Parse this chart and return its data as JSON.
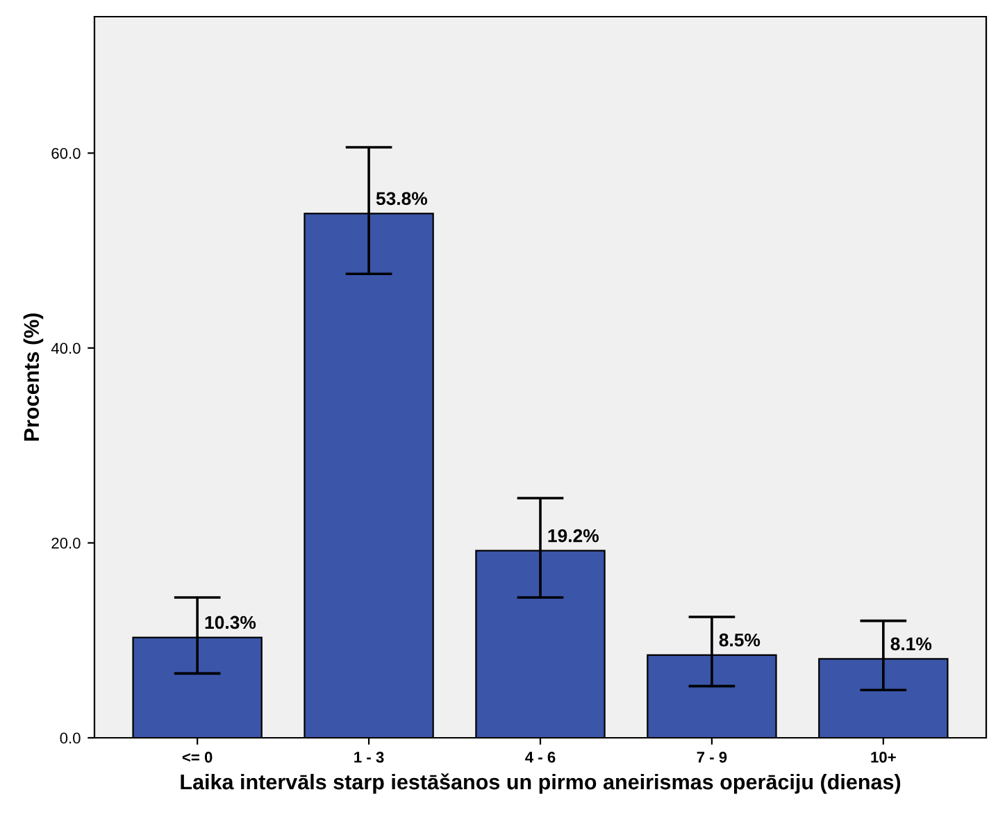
{
  "chart_data": {
    "type": "bar",
    "xlabel": "Laika intervāls starp iestāšanos un pirmo aneirismas operāciju (dienas)",
    "ylabel": "Procents (%)",
    "categories": [
      "<= 0",
      "1 - 3",
      "4 - 6",
      "7 - 9",
      "10+"
    ],
    "values": [
      10.3,
      53.8,
      19.2,
      8.5,
      8.1
    ],
    "value_labels": [
      "10.3%",
      "53.8%",
      "19.2%",
      "8.5%",
      "8.1%"
    ],
    "errors": [
      [
        6.6,
        14.4
      ],
      [
        47.6,
        60.6
      ],
      [
        14.4,
        24.6
      ],
      [
        5.3,
        12.4
      ],
      [
        4.9,
        12.0
      ]
    ],
    "color": "#3b55a9",
    "ylim": [
      0,
      74
    ],
    "yticks": [
      {
        "value": 0,
        "label": "0.0"
      },
      {
        "value": 20,
        "label": "20.0"
      },
      {
        "value": 40,
        "label": "40.0"
      },
      {
        "value": 60,
        "label": "60.0"
      }
    ],
    "grid": false,
    "legend": false
  }
}
